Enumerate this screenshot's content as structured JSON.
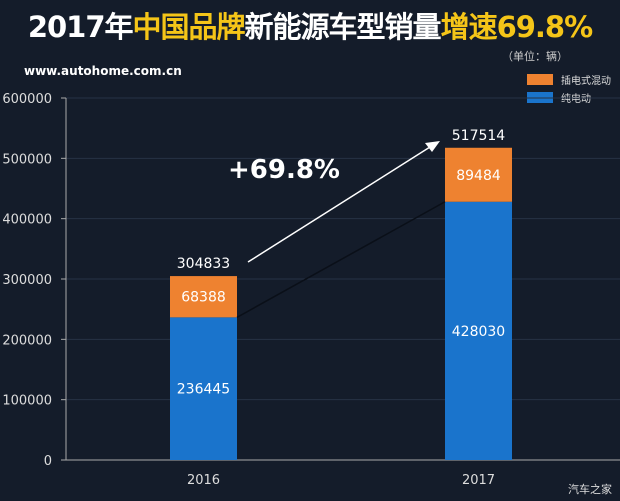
{
  "chart_data": {
    "type": "bar",
    "stacked": true,
    "title_parts": [
      {
        "text": "2017年",
        "hl": false
      },
      {
        "text": "中国品牌",
        "hl": true
      },
      {
        "text": "新能源车型销量",
        "hl": false
      },
      {
        "text": "增速69.8%",
        "hl": true
      }
    ],
    "unit": "（单位：辆）",
    "categories": [
      "2016",
      "2017"
    ],
    "series": [
      {
        "name": "纯电动",
        "color": "#1a74cc",
        "values": [
          236445,
          428030
        ]
      },
      {
        "name": "插电式混动",
        "color": "#ee8230",
        "values": [
          68388,
          89484
        ]
      }
    ],
    "totals": [
      304833,
      517514
    ],
    "ylim": [
      0,
      600000
    ],
    "yticks": [
      0,
      100000,
      200000,
      300000,
      400000,
      500000,
      600000
    ],
    "annotation": "+69.8%",
    "legend": "top-right",
    "grid": true
  },
  "watermark": "www.autohome.com.cn",
  "logo": "汽车之家",
  "colors": {
    "background": "#141c2a",
    "highlight": "#f5c518"
  }
}
